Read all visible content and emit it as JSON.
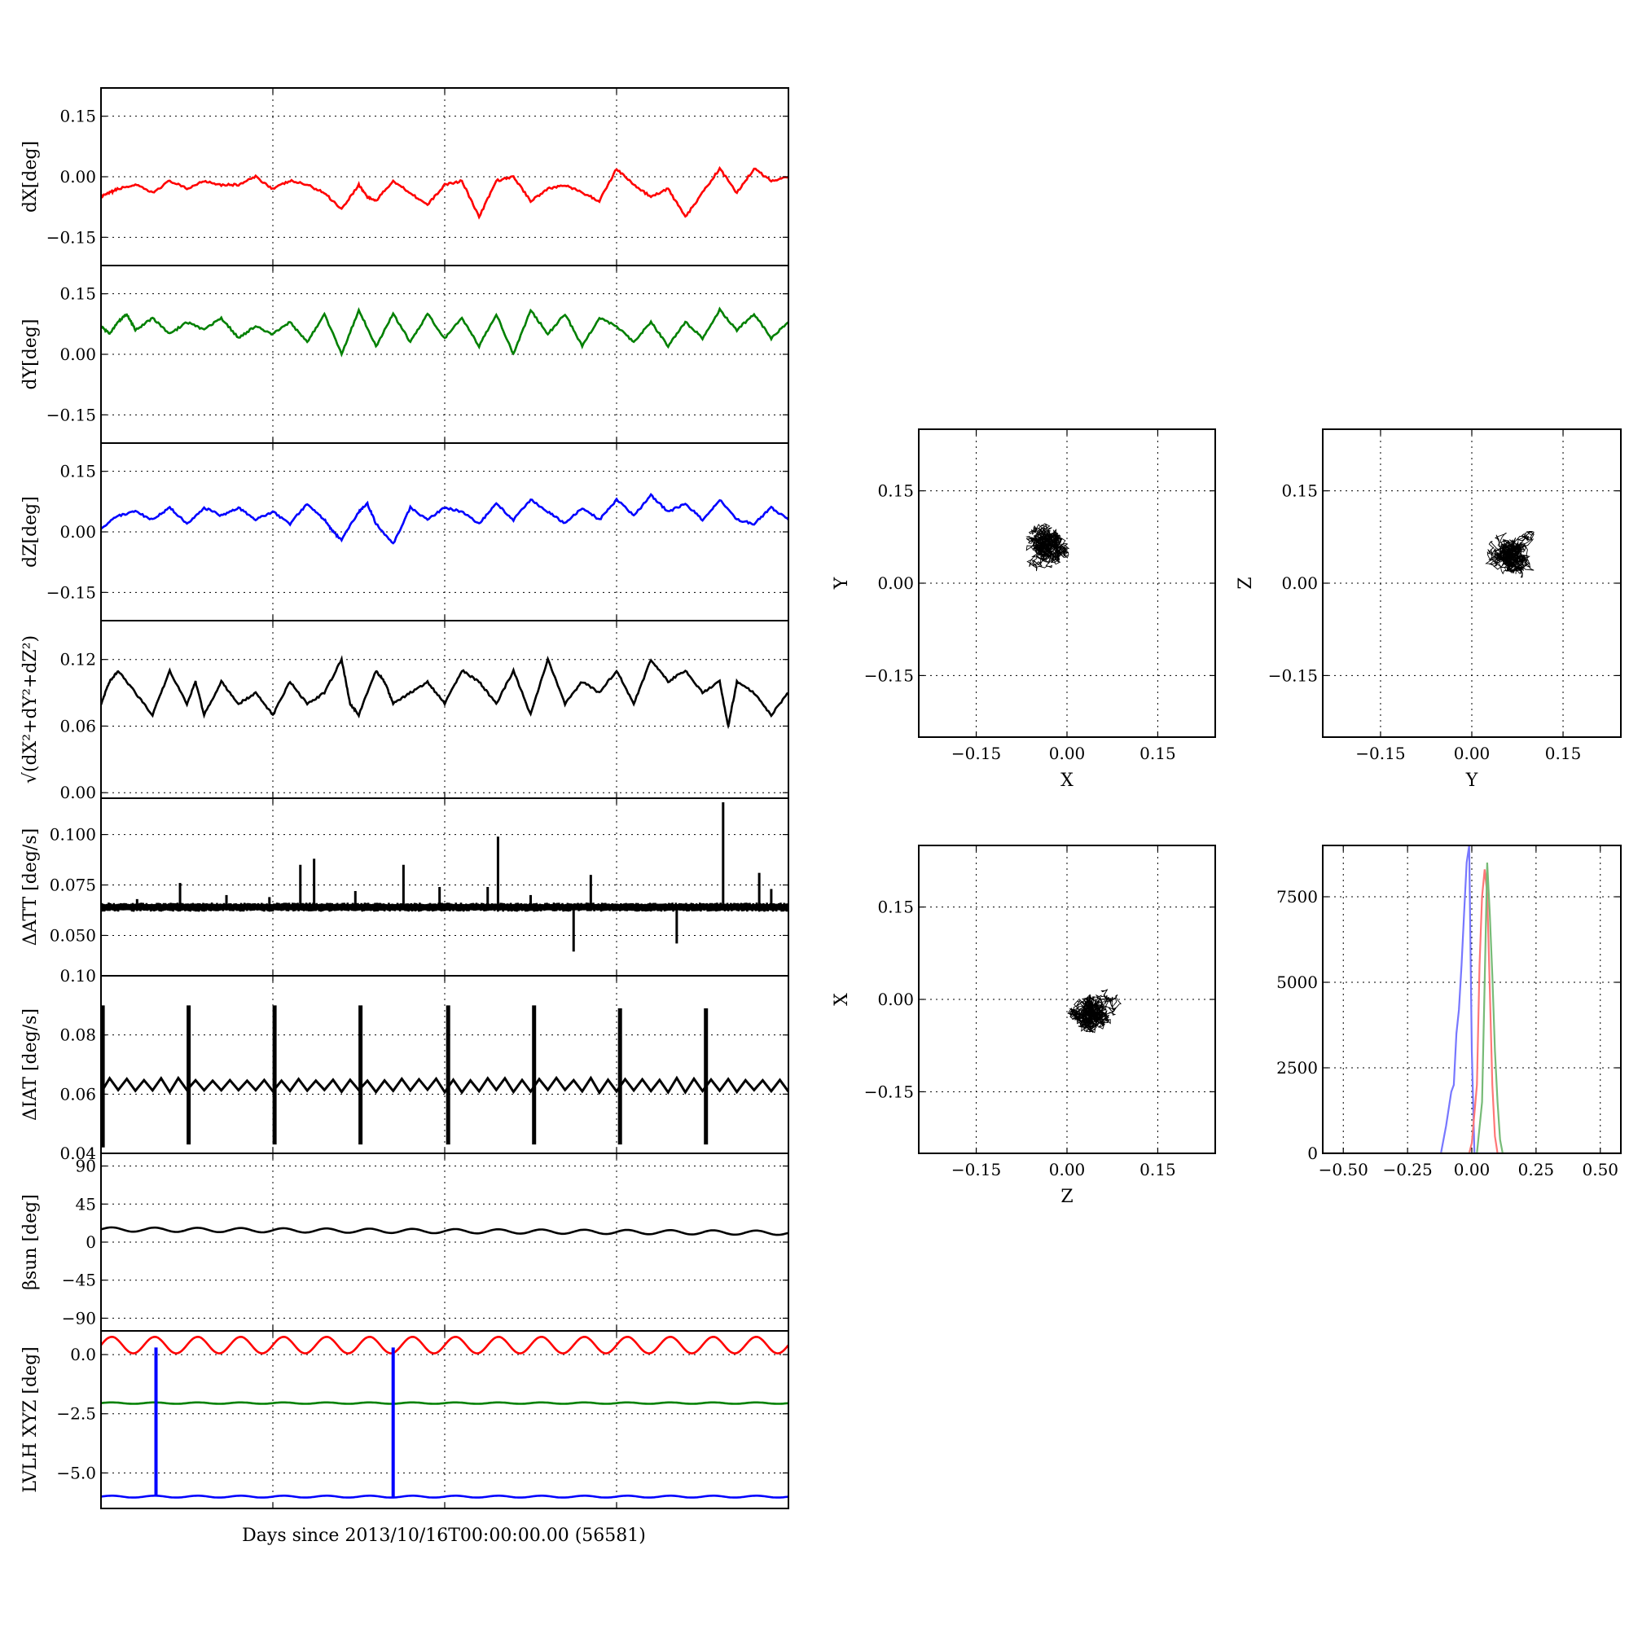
{
  "figure": {
    "xlabel": "Days since 2013/10/16T00:00:00.00 (56581)"
  },
  "chart_data": [
    {
      "id": "dx",
      "type": "line",
      "ylabel": "dX[deg]",
      "ylim": [
        -0.22,
        0.22
      ],
      "yticks": [
        -0.15,
        0.0,
        0.15
      ],
      "ytick_labels": [
        "−0.15",
        "0.00",
        "0.15"
      ],
      "xlim": [
        0,
        40
      ],
      "grid": true,
      "series": [
        {
          "color": "#ff0000",
          "x": [
            0,
            0.5,
            1,
            2,
            3,
            4,
            5,
            6,
            7,
            8,
            9,
            10,
            11,
            12,
            13,
            14,
            15,
            15.5,
            16,
            17,
            18,
            19,
            20,
            21,
            22,
            23,
            24,
            25,
            26,
            27,
            28,
            29,
            30,
            31,
            32,
            33,
            34,
            35,
            36,
            37,
            38,
            39,
            40
          ],
          "y": [
            -0.05,
            -0.04,
            -0.03,
            -0.02,
            -0.04,
            -0.01,
            -0.03,
            -0.01,
            -0.02,
            -0.02,
            0.0,
            -0.03,
            -0.01,
            -0.02,
            -0.04,
            -0.08,
            -0.02,
            -0.05,
            -0.06,
            -0.01,
            -0.04,
            -0.07,
            -0.02,
            -0.01,
            -0.1,
            -0.01,
            0.0,
            -0.06,
            -0.03,
            -0.02,
            -0.04,
            -0.06,
            0.02,
            -0.02,
            -0.05,
            -0.03,
            -0.1,
            -0.04,
            0.02,
            -0.04,
            0.02,
            -0.01,
            0.0
          ]
        }
      ]
    },
    {
      "id": "dy",
      "type": "line",
      "ylabel": "dY[deg]",
      "ylim": [
        -0.22,
        0.22
      ],
      "yticks": [
        -0.15,
        0.0,
        0.15
      ],
      "ytick_labels": [
        "−0.15",
        "0.00",
        "0.15"
      ],
      "xlim": [
        0,
        40
      ],
      "grid": true,
      "series": [
        {
          "color": "#008000",
          "x": [
            0,
            0.5,
            1,
            1.5,
            2,
            3,
            4,
            5,
            6,
            7,
            8,
            9,
            10,
            11,
            12,
            13,
            14,
            15,
            16,
            17,
            18,
            19,
            20,
            21,
            22,
            23,
            24,
            25,
            26,
            27,
            28,
            29,
            30,
            31,
            32,
            33,
            34,
            35,
            36,
            37,
            38,
            39,
            40
          ],
          "y": [
            0.07,
            0.05,
            0.08,
            0.1,
            0.06,
            0.09,
            0.05,
            0.08,
            0.06,
            0.09,
            0.04,
            0.07,
            0.05,
            0.08,
            0.03,
            0.1,
            0.0,
            0.11,
            0.02,
            0.1,
            0.03,
            0.1,
            0.04,
            0.09,
            0.02,
            0.1,
            0.0,
            0.11,
            0.05,
            0.1,
            0.02,
            0.09,
            0.07,
            0.03,
            0.08,
            0.02,
            0.08,
            0.04,
            0.11,
            0.06,
            0.1,
            0.04,
            0.08
          ]
        }
      ]
    },
    {
      "id": "dz",
      "type": "line",
      "ylabel": "dZ[deg]",
      "ylim": [
        -0.22,
        0.22
      ],
      "yticks": [
        -0.15,
        0.0,
        0.15
      ],
      "ytick_labels": [
        "−0.15",
        "0.00",
        "0.15"
      ],
      "xlim": [
        0,
        40
      ],
      "grid": true,
      "series": [
        {
          "color": "#0000ff",
          "x": [
            0,
            1,
            2,
            3,
            4,
            5,
            6,
            7,
            8,
            9,
            10,
            11,
            12,
            13,
            13.5,
            14,
            15,
            15.5,
            16,
            17,
            18,
            19,
            20,
            21,
            22,
            23,
            24,
            25,
            26,
            27,
            28,
            29,
            30,
            31,
            32,
            33,
            34,
            35,
            36,
            37,
            38,
            39,
            40
          ],
          "y": [
            0.01,
            0.04,
            0.05,
            0.03,
            0.06,
            0.02,
            0.06,
            0.04,
            0.06,
            0.03,
            0.05,
            0.02,
            0.07,
            0.03,
            0.0,
            -0.02,
            0.05,
            0.07,
            0.02,
            -0.03,
            0.06,
            0.03,
            0.06,
            0.05,
            0.02,
            0.07,
            0.03,
            0.08,
            0.05,
            0.02,
            0.06,
            0.03,
            0.08,
            0.04,
            0.09,
            0.05,
            0.07,
            0.03,
            0.08,
            0.03,
            0.02,
            0.06,
            0.03
          ]
        }
      ]
    },
    {
      "id": "rss",
      "type": "line",
      "ylabel": "√(dX²+dY²+dZ²)",
      "ylim": [
        -0.005,
        0.155
      ],
      "yticks": [
        0.0,
        0.06,
        0.12
      ],
      "ytick_labels": [
        "0.00",
        "0.06",
        "0.12"
      ],
      "xlim": [
        0,
        40
      ],
      "grid": true,
      "series": [
        {
          "color": "#000000",
          "x": [
            0,
            0.5,
            1,
            2,
            3,
            4,
            5,
            5.5,
            6,
            7,
            8,
            9,
            10,
            11,
            12,
            13,
            14,
            14.5,
            15,
            16,
            16.5,
            17,
            18,
            19,
            20,
            21,
            22,
            23,
            24,
            25,
            26,
            27,
            28,
            29,
            30,
            31,
            32,
            33,
            34,
            35,
            36,
            36.5,
            37,
            38,
            39,
            40
          ],
          "y": [
            0.08,
            0.1,
            0.11,
            0.09,
            0.07,
            0.11,
            0.08,
            0.1,
            0.07,
            0.1,
            0.08,
            0.09,
            0.07,
            0.1,
            0.08,
            0.09,
            0.12,
            0.08,
            0.07,
            0.11,
            0.1,
            0.08,
            0.09,
            0.1,
            0.08,
            0.11,
            0.1,
            0.08,
            0.11,
            0.07,
            0.12,
            0.08,
            0.1,
            0.09,
            0.11,
            0.08,
            0.12,
            0.1,
            0.11,
            0.09,
            0.1,
            0.06,
            0.1,
            0.09,
            0.07,
            0.09
          ]
        }
      ]
    },
    {
      "id": "datt",
      "type": "line",
      "ylabel": "ΔATT [deg/s]",
      "ylim": [
        0.03,
        0.118
      ],
      "yticks": [
        0.05,
        0.075,
        0.1
      ],
      "ytick_labels": [
        "0.050",
        "0.075",
        "0.100"
      ],
      "xlim": [
        0,
        40
      ],
      "grid": true,
      "baseline": 0.064,
      "spikes": [
        {
          "x": 2.1,
          "y": 0.068
        },
        {
          "x": 4.6,
          "y": 0.076
        },
        {
          "x": 7.3,
          "y": 0.07
        },
        {
          "x": 9.8,
          "y": 0.069
        },
        {
          "x": 11.6,
          "y": 0.085
        },
        {
          "x": 12.4,
          "y": 0.088
        },
        {
          "x": 14.8,
          "y": 0.072
        },
        {
          "x": 17.6,
          "y": 0.085
        },
        {
          "x": 19.7,
          "y": 0.074
        },
        {
          "x": 22.5,
          "y": 0.074
        },
        {
          "x": 23.1,
          "y": 0.099
        },
        {
          "x": 25.0,
          "y": 0.07
        },
        {
          "x": 27.5,
          "y": 0.042
        },
        {
          "x": 28.5,
          "y": 0.08
        },
        {
          "x": 33.5,
          "y": 0.046
        },
        {
          "x": 36.2,
          "y": 0.116
        },
        {
          "x": 38.3,
          "y": 0.081
        },
        {
          "x": 39.0,
          "y": 0.073
        }
      ],
      "series": [
        {
          "color": "#000000",
          "x": [
            0,
            40
          ],
          "y": [
            0.064,
            0.064
          ]
        }
      ]
    },
    {
      "id": "diat",
      "type": "line",
      "ylabel": "ΔIAT [deg/s]",
      "ylim": [
        0.04,
        0.1
      ],
      "yticks": [
        0.04,
        0.06,
        0.08,
        0.1
      ],
      "ytick_labels": [
        "0.04",
        "0.06",
        "0.08",
        "0.10"
      ],
      "xlim": [
        0,
        40
      ],
      "grid": true,
      "baseline": 0.064,
      "spikes": [
        {
          "x": 0.1,
          "y0": 0.042,
          "y1": 0.09
        },
        {
          "x": 5.1,
          "y0": 0.043,
          "y1": 0.09
        },
        {
          "x": 10.1,
          "y0": 0.043,
          "y1": 0.09
        },
        {
          "x": 15.1,
          "y0": 0.043,
          "y1": 0.09
        },
        {
          "x": 20.2,
          "y0": 0.043,
          "y1": 0.09
        },
        {
          "x": 25.2,
          "y0": 0.043,
          "y1": 0.09
        },
        {
          "x": 30.2,
          "y0": 0.043,
          "y1": 0.089
        },
        {
          "x": 35.2,
          "y0": 0.043,
          "y1": 0.089
        }
      ],
      "series": [
        {
          "color": "#000000",
          "x": [
            0,
            40
          ],
          "y": [
            0.064,
            0.064
          ]
        }
      ]
    },
    {
      "id": "beta",
      "type": "line",
      "ylabel": "βsun [deg]",
      "ylim": [
        -105,
        105
      ],
      "yticks": [
        -90,
        -45,
        0,
        45,
        90
      ],
      "ytick_labels": [
        "−90",
        "−45",
        "0",
        "45",
        "90"
      ],
      "xlim": [
        0,
        40
      ],
      "grid": true,
      "series": [
        {
          "color": "#000000",
          "x": [
            0,
            40
          ],
          "y": [
            15,
            11
          ],
          "wave": 2.5
        }
      ]
    },
    {
      "id": "lvlh",
      "type": "line",
      "ylabel": "LVLH XYZ [deg]",
      "ylim": [
        -6.5,
        1.0
      ],
      "yticks": [
        -5.0,
        -2.5,
        0.0
      ],
      "ytick_labels": [
        "−5.0",
        "−2.5",
        "0.0"
      ],
      "xlim": [
        0,
        40
      ],
      "grid": true,
      "series": [
        {
          "color": "#ff0000",
          "x": [
            0,
            40
          ],
          "y": [
            0.4,
            0.4
          ],
          "wave": 0.35
        },
        {
          "color": "#008000",
          "x": [
            0,
            40
          ],
          "y": [
            -2.05,
            -2.05
          ],
          "wave": 0.03
        },
        {
          "color": "#0000ff",
          "x": [
            0,
            40
          ],
          "y": [
            -6.0,
            -6.0
          ],
          "wave": 0.04
        }
      ],
      "spikes": [
        {
          "x": 3.2,
          "y0": -6.0,
          "y1": 0.3,
          "color": "#0000ff"
        },
        {
          "x": 17.0,
          "y0": -6.0,
          "y1": 0.3,
          "color": "#0000ff"
        }
      ]
    },
    {
      "id": "xy",
      "type": "scatter",
      "xlabel": "X",
      "ylabel": "Y",
      "xlim": [
        -0.245,
        0.245
      ],
      "ylim": [
        -0.25,
        0.25
      ],
      "ticks": [
        -0.15,
        0.0,
        0.15
      ],
      "tick_labels": [
        "−0.15",
        "0.00",
        "0.15"
      ],
      "grid": true,
      "center": [
        -0.03,
        0.065
      ],
      "spread": [
        0.04,
        0.035
      ]
    },
    {
      "id": "yz",
      "type": "scatter",
      "xlabel": "Y",
      "ylabel": "Z",
      "xlim": [
        -0.245,
        0.245
      ],
      "ylim": [
        -0.25,
        0.25
      ],
      "ticks": [
        -0.15,
        0.0,
        0.15
      ],
      "tick_labels": [
        "−0.15",
        "0.00",
        "0.15"
      ],
      "grid": true,
      "center": [
        0.06,
        0.045
      ],
      "spread": [
        0.03,
        0.03
      ]
    },
    {
      "id": "zx",
      "type": "scatter",
      "xlabel": "Z",
      "ylabel": "X",
      "xlim": [
        -0.245,
        0.245
      ],
      "ylim": [
        -0.25,
        0.25
      ],
      "ticks": [
        -0.15,
        0.0,
        0.15
      ],
      "tick_labels": [
        "−0.15",
        "0.00",
        "0.15"
      ],
      "grid": true,
      "center": [
        0.04,
        -0.025
      ],
      "spread": [
        0.035,
        0.04
      ]
    },
    {
      "id": "hist",
      "type": "line",
      "xlim": [
        -0.58,
        0.58
      ],
      "ylim": [
        0,
        9000
      ],
      "xticks": [
        -0.5,
        -0.25,
        0.0,
        0.25,
        0.5
      ],
      "xtick_labels": [
        "−0.50",
        "−0.25",
        "0.00",
        "0.25",
        "0.50"
      ],
      "yticks": [
        0,
        2500,
        5000,
        7500
      ],
      "ytick_labels": [
        "0",
        "2500",
        "5000",
        "7500"
      ],
      "grid": true,
      "series": [
        {
          "color": "#7777ff",
          "x": [
            -0.58,
            -0.12,
            -0.1,
            -0.08,
            -0.07,
            -0.06,
            -0.05,
            -0.04,
            -0.03,
            -0.02,
            -0.01,
            0.0,
            0.01,
            0.58
          ],
          "y": [
            0,
            0,
            800,
            1800,
            2000,
            3500,
            4200,
            5500,
            7000,
            8500,
            9000,
            3000,
            0,
            0
          ]
        },
        {
          "color": "#ff7777",
          "x": [
            -0.58,
            -0.01,
            0.0,
            0.02,
            0.03,
            0.04,
            0.05,
            0.06,
            0.07,
            0.08,
            0.09,
            0.1,
            0.58
          ],
          "y": [
            0,
            0,
            300,
            2000,
            5500,
            7500,
            8300,
            7600,
            4800,
            2000,
            500,
            0,
            0
          ]
        },
        {
          "color": "#77bb77",
          "x": [
            -0.58,
            0.02,
            0.04,
            0.05,
            0.06,
            0.07,
            0.08,
            0.09,
            0.1,
            0.11,
            0.12,
            0.58
          ],
          "y": [
            0,
            0,
            1500,
            5000,
            8500,
            7000,
            5200,
            3000,
            1500,
            400,
            0,
            0
          ]
        }
      ]
    }
  ]
}
